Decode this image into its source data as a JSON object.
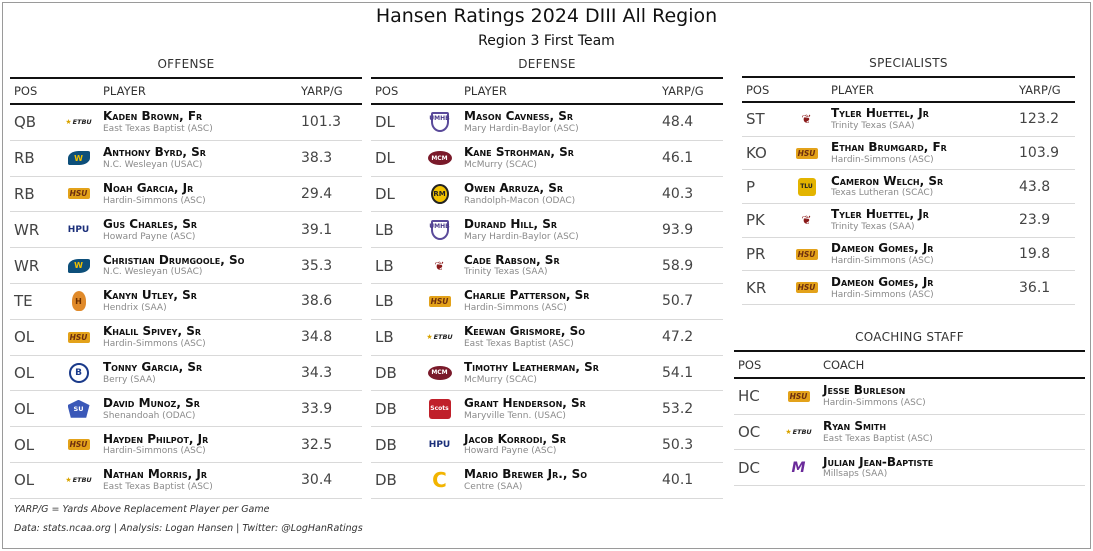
{
  "title": "Hansen Ratings 2024 DIII All Region",
  "subtitle": "Region 3 First Team",
  "offense": {
    "section": "OFFENSE",
    "headers": {
      "pos": "POS",
      "player": "PLAYER",
      "val": "YARP/G"
    },
    "rows": [
      {
        "pos": "QB",
        "name": "Kaden Brown, Fr",
        "team": "East Texas Baptist (ASC)",
        "val": "101.3",
        "logo": "etbu-logo"
      },
      {
        "pos": "RB",
        "name": "Anthony Byrd, Sr",
        "team": "N.C. Wesleyan (USAC)",
        "val": "38.3",
        "logo": "ncwesleyan-logo"
      },
      {
        "pos": "RB",
        "name": "Noah Garcia, Jr",
        "team": "Hardin-Simmons (ASC)",
        "val": "29.4",
        "logo": "hsu-logo"
      },
      {
        "pos": "WR",
        "name": "Gus Charles, Sr",
        "team": "Howard Payne (ASC)",
        "val": "39.1",
        "logo": "hpu-logo"
      },
      {
        "pos": "WR",
        "name": "Christian Drumgoole, So",
        "team": "N.C. Wesleyan (USAC)",
        "val": "35.3",
        "logo": "ncwesleyan-logo"
      },
      {
        "pos": "TE",
        "name": "Kanyn Utley, Sr",
        "team": "Hendrix (SAA)",
        "val": "38.6",
        "logo": "hendrix-logo"
      },
      {
        "pos": "OL",
        "name": "Khalil Spivey, Sr",
        "team": "Hardin-Simmons (ASC)",
        "val": "34.8",
        "logo": "hsu-logo"
      },
      {
        "pos": "OL",
        "name": "Tonny Garcia, Sr",
        "team": "Berry (SAA)",
        "val": "34.3",
        "logo": "berry-logo"
      },
      {
        "pos": "OL",
        "name": "David Munoz, Sr",
        "team": "Shenandoah (ODAC)",
        "val": "33.9",
        "logo": "shenandoah-logo"
      },
      {
        "pos": "OL",
        "name": "Hayden Philpot, Jr",
        "team": "Hardin-Simmons (ASC)",
        "val": "32.5",
        "logo": "hsu-logo"
      },
      {
        "pos": "OL",
        "name": "Nathan Morris, Jr",
        "team": "East Texas Baptist (ASC)",
        "val": "30.4",
        "logo": "etbu-logo"
      }
    ]
  },
  "defense": {
    "section": "DEFENSE",
    "headers": {
      "pos": "POS",
      "player": "PLAYER",
      "val": "YARP/G"
    },
    "rows": [
      {
        "pos": "DL",
        "name": "Mason Cavness, Sr",
        "team": "Mary Hardin-Baylor (ASC)",
        "val": "48.4",
        "logo": "umhb-logo"
      },
      {
        "pos": "DL",
        "name": "Kane Strohman, Sr",
        "team": "McMurry (SCAC)",
        "val": "46.1",
        "logo": "mcmurry-logo"
      },
      {
        "pos": "DL",
        "name": "Owen Arruza, Sr",
        "team": "Randolph-Macon (ODAC)",
        "val": "40.3",
        "logo": "randolph-macon-logo"
      },
      {
        "pos": "LB",
        "name": "Durand Hill, Sr",
        "team": "Mary Hardin-Baylor (ASC)",
        "val": "93.9",
        "logo": "umhb-logo"
      },
      {
        "pos": "LB",
        "name": "Cade Rabson, Sr",
        "team": "Trinity Texas (SAA)",
        "val": "58.9",
        "logo": "trinity-logo"
      },
      {
        "pos": "LB",
        "name": "Charlie Patterson, Sr",
        "team": "Hardin-Simmons (ASC)",
        "val": "50.7",
        "logo": "hsu-logo"
      },
      {
        "pos": "LB",
        "name": "Keewan Grismore, So",
        "team": "East Texas Baptist (ASC)",
        "val": "47.2",
        "logo": "etbu-logo"
      },
      {
        "pos": "DB",
        "name": "Timothy Leatherman, Sr",
        "team": "McMurry (SCAC)",
        "val": "54.1",
        "logo": "mcmurry-logo"
      },
      {
        "pos": "DB",
        "name": "Grant Henderson, Sr",
        "team": "Maryville Tenn. (USAC)",
        "val": "53.2",
        "logo": "maryville-logo"
      },
      {
        "pos": "DB",
        "name": "Jacob Korrodi, Sr",
        "team": "Howard Payne (ASC)",
        "val": "50.3",
        "logo": "hpu-logo"
      },
      {
        "pos": "DB",
        "name": "Mario Brewer Jr., So",
        "team": "Centre (SAA)",
        "val": "40.1",
        "logo": "centre-logo"
      }
    ]
  },
  "specialists": {
    "section": "SPECIALISTS",
    "headers": {
      "pos": "POS",
      "player": "PLAYER",
      "val": "YARP/G"
    },
    "rows": [
      {
        "pos": "ST",
        "name": "Tyler Huettel, Jr",
        "team": "Trinity Texas (SAA)",
        "val": "123.2",
        "logo": "trinity-logo"
      },
      {
        "pos": "KO",
        "name": "Ethan Brumgard, Fr",
        "team": "Hardin-Simmons (ASC)",
        "val": "103.9",
        "logo": "hsu-logo"
      },
      {
        "pos": "P",
        "name": "Cameron Welch, Sr",
        "team": "Texas Lutheran (SCAC)",
        "val": "43.8",
        "logo": "texas-lutheran-logo"
      },
      {
        "pos": "PK",
        "name": "Tyler Huettel, Jr",
        "team": "Trinity Texas (SAA)",
        "val": "23.9",
        "logo": "trinity-logo"
      },
      {
        "pos": "PR",
        "name": "Dameon Gomes, Jr",
        "team": "Hardin-Simmons (ASC)",
        "val": "19.8",
        "logo": "hsu-logo"
      },
      {
        "pos": "KR",
        "name": "Dameon Gomes, Jr",
        "team": "Hardin-Simmons (ASC)",
        "val": "36.1",
        "logo": "hsu-logo"
      }
    ]
  },
  "coaching": {
    "section": "COACHING STAFF",
    "headers": {
      "pos": "POS",
      "coach": "COACH"
    },
    "rows": [
      {
        "pos": "HC",
        "name": "Jesse Burleson",
        "team": "Hardin-Simmons (ASC)",
        "logo": "hsu-logo"
      },
      {
        "pos": "OC",
        "name": "Ryan Smith",
        "team": "East Texas Baptist (ASC)",
        "logo": "etbu-logo"
      },
      {
        "pos": "DC",
        "name": "Julian Jean-Baptiste",
        "team": "Millsaps (SAA)",
        "logo": "millsaps-logo"
      }
    ]
  },
  "logos": {
    "hsu-logo": {
      "cls": "lg-hsu",
      "text": "HSU"
    },
    "etbu-logo": {
      "cls": "lg-etbu",
      "text": "ETBU"
    },
    "ncwesleyan-logo": {
      "cls": "lg-ncw",
      "text": "W"
    },
    "hpu-logo": {
      "cls": "lg-hpu",
      "text": "HPU"
    },
    "hendrix-logo": {
      "cls": "lg-hendrix",
      "text": "H"
    },
    "berry-logo": {
      "cls": "lg-berry",
      "text": "B"
    },
    "shenandoah-logo": {
      "cls": "lg-shen",
      "text": "SU"
    },
    "umhb-logo": {
      "cls": "lg-umhb",
      "text": "UMHB"
    },
    "mcmurry-logo": {
      "cls": "lg-mcm",
      "text": "MCM"
    },
    "randolph-macon-logo": {
      "cls": "lg-rmc",
      "text": "RM"
    },
    "trinity-logo": {
      "cls": "lg-trin",
      "text": "❦"
    },
    "maryville-logo": {
      "cls": "lg-mary",
      "text": "Scots"
    },
    "centre-logo": {
      "cls": "lg-centre",
      "text": "C"
    },
    "texas-lutheran-logo": {
      "cls": "lg-tlu",
      "text": "TLU"
    },
    "millsaps-logo": {
      "cls": "lg-millsaps",
      "text": "M"
    }
  },
  "footnote": "YARP/G = Yards Above Replacement Player per Game",
  "credits": "Data: stats.ncaa.org | Analysis: Logan Hansen | Twitter: @LogHanRatings"
}
